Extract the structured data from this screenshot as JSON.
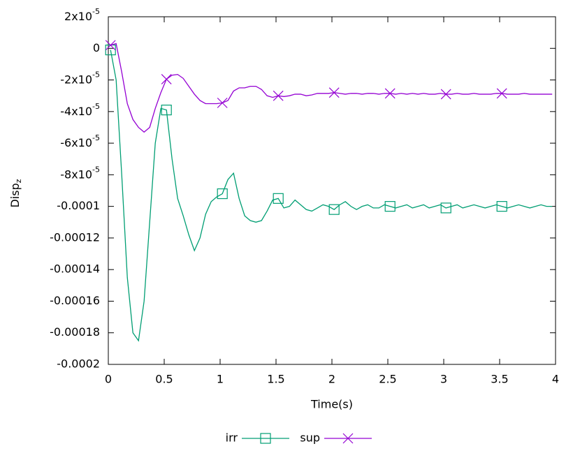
{
  "chart_data": {
    "type": "line",
    "xlabel": "Time(s)",
    "ylabel": "Disp",
    "ylabel_sub": "z",
    "xlim": [
      0,
      4
    ],
    "ylim": [
      -0.0002,
      2e-05
    ],
    "xticks": [
      0,
      0.5,
      1,
      1.5,
      2,
      2.5,
      3,
      3.5,
      4
    ],
    "yticks": [
      {
        "value": 2e-05,
        "label": "2x10",
        "label_sup": "-5"
      },
      0,
      {
        "value": -2e-05,
        "label": "-2x10",
        "label_sup": "-5"
      },
      {
        "value": -4e-05,
        "label": "-4x10",
        "label_sup": "-5"
      },
      {
        "value": -6e-05,
        "label": "-6x10",
        "label_sup": "-5"
      },
      {
        "value": -8e-05,
        "label": "-8x10",
        "label_sup": "-5"
      },
      -0.0001,
      -0.00012,
      -0.00014,
      -0.00016,
      -0.00018,
      -0.0002
    ],
    "grid": false,
    "legend": "bottom",
    "point_interval": 10,
    "x": [
      0.02,
      0.07,
      0.12,
      0.17,
      0.22,
      0.27,
      0.32,
      0.37,
      0.42,
      0.47,
      0.52,
      0.57,
      0.62,
      0.67,
      0.72,
      0.77,
      0.82,
      0.87,
      0.92,
      0.97,
      1.02,
      1.07,
      1.12,
      1.17,
      1.22,
      1.27,
      1.32,
      1.37,
      1.42,
      1.47,
      1.52,
      1.57,
      1.62,
      1.67,
      1.72,
      1.77,
      1.82,
      1.87,
      1.92,
      1.97,
      2.02,
      2.07,
      2.12,
      2.17,
      2.22,
      2.27,
      2.32,
      2.37,
      2.42,
      2.47,
      2.52,
      2.57,
      2.62,
      2.67,
      2.72,
      2.77,
      2.82,
      2.87,
      2.92,
      2.97,
      3.02,
      3.07,
      3.12,
      3.17,
      3.22,
      3.27,
      3.32,
      3.37,
      3.42,
      3.47,
      3.52,
      3.57,
      3.62,
      3.67,
      3.72,
      3.77,
      3.82,
      3.87,
      3.92,
      3.97
    ],
    "series": [
      {
        "name": "irr",
        "color": "#009e73",
        "marker": "square",
        "values": [
          -1e-06,
          -2e-05,
          -8e-05,
          -0.000145,
          -0.00018,
          -0.000185,
          -0.00016,
          -0.00011,
          -6e-05,
          -3.8e-05,
          -3.9e-05,
          -7e-05,
          -9.5e-05,
          -0.000106,
          -0.000118,
          -0.000128,
          -0.00012,
          -0.000105,
          -9.7e-05,
          -9.4e-05,
          -9.2e-05,
          -8.3e-05,
          -7.9e-05,
          -9.5e-05,
          -0.000106,
          -0.000109,
          -0.00011,
          -0.000109,
          -0.000103,
          -9.6e-05,
          -9.5e-05,
          -0.000101,
          -0.0001,
          -9.6e-05,
          -9.9e-05,
          -0.000102,
          -0.000103,
          -0.000101,
          -9.9e-05,
          -0.0001,
          -0.000102,
          -9.9e-05,
          -9.7e-05,
          -0.0001,
          -0.000102,
          -0.0001,
          -9.9e-05,
          -0.000101,
          -0.000101,
          -9.9e-05,
          -0.0001,
          -0.000101,
          -0.0001,
          -9.9e-05,
          -0.000101,
          -0.0001,
          -9.9e-05,
          -0.000101,
          -0.0001,
          -9.9e-05,
          -0.000101,
          -0.0001,
          -9.9e-05,
          -0.000101,
          -0.0001,
          -9.9e-05,
          -0.0001,
          -0.000101,
          -0.0001,
          -9.9e-05,
          -0.0001,
          -0.000101,
          -0.0001,
          -9.9e-05,
          -0.0001,
          -0.000101,
          -0.0001,
          -9.9e-05,
          -0.0001,
          -0.0001
        ]
      },
      {
        "name": "sup",
        "color": "#9400d3",
        "marker": "cross",
        "values": [
          2e-06,
          3e-06,
          -1.5e-05,
          -3.5e-05,
          -4.5e-05,
          -5e-05,
          -5.3e-05,
          -5e-05,
          -3.8e-05,
          -2.8e-05,
          -1.95e-05,
          -1.7e-05,
          -1.65e-05,
          -1.9e-05,
          -2.4e-05,
          -2.9e-05,
          -3.3e-05,
          -3.5e-05,
          -3.5e-05,
          -3.5e-05,
          -3.45e-05,
          -3.3e-05,
          -2.7e-05,
          -2.5e-05,
          -2.5e-05,
          -2.4e-05,
          -2.4e-05,
          -2.6e-05,
          -3e-05,
          -3.1e-05,
          -3e-05,
          -3.05e-05,
          -3e-05,
          -2.9e-05,
          -2.9e-05,
          -3e-05,
          -2.95e-05,
          -2.85e-05,
          -2.85e-05,
          -2.85e-05,
          -2.8e-05,
          -2.85e-05,
          -2.9e-05,
          -2.85e-05,
          -2.85e-05,
          -2.9e-05,
          -2.85e-05,
          -2.85e-05,
          -2.9e-05,
          -2.85e-05,
          -2.85e-05,
          -2.9e-05,
          -2.85e-05,
          -2.9e-05,
          -2.85e-05,
          -2.9e-05,
          -2.85e-05,
          -2.9e-05,
          -2.9e-05,
          -2.85e-05,
          -2.9e-05,
          -2.9e-05,
          -2.85e-05,
          -2.9e-05,
          -2.9e-05,
          -2.85e-05,
          -2.9e-05,
          -2.9e-05,
          -2.9e-05,
          -2.85e-05,
          -2.85e-05,
          -2.9e-05,
          -2.9e-05,
          -2.9e-05,
          -2.85e-05,
          -2.9e-05,
          -2.9e-05,
          -2.9e-05,
          -2.9e-05,
          -2.9e-05
        ]
      }
    ]
  }
}
